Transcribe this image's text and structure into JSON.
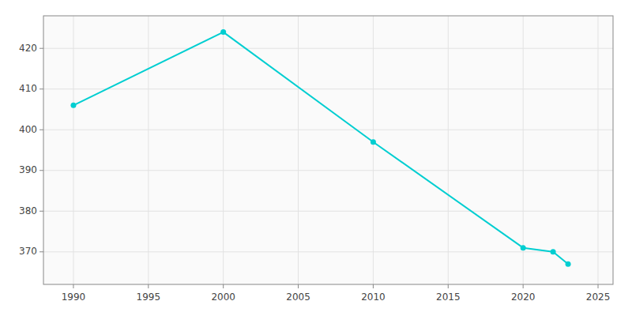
{
  "chart_data": {
    "type": "line",
    "x": [
      1990,
      2000,
      2010,
      2020,
      2022,
      2023
    ],
    "values": [
      406,
      424,
      397,
      371,
      370,
      367
    ],
    "color": "#00CED1",
    "marker": "circle",
    "xlim": [
      1988,
      2026
    ],
    "ylim": [
      362,
      428
    ],
    "xticks": [
      1990,
      1995,
      2000,
      2005,
      2010,
      2015,
      2020,
      2025
    ],
    "yticks": [
      370,
      380,
      390,
      400,
      410,
      420
    ],
    "grid": true
  }
}
